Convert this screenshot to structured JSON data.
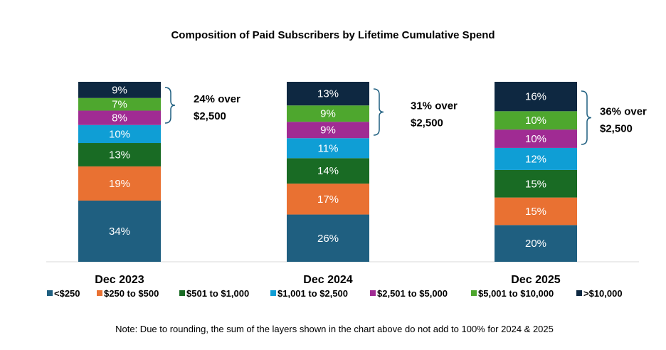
{
  "chart_data": {
    "type": "bar",
    "stacked": true,
    "title": "Composition of Paid Subscribers by Lifetime Cumulative Spend",
    "categories": [
      "Dec 2023",
      "Dec 2024",
      "Dec 2025"
    ],
    "unit": "%",
    "series": [
      {
        "name": "<$250",
        "color": "#1F5F80",
        "values": [
          34,
          26,
          20
        ]
      },
      {
        "name": "$250 to $500",
        "color": "#E97132",
        "values": [
          19,
          17,
          15
        ]
      },
      {
        "name": "$501 to $1,000",
        "color": "#196B24",
        "values": [
          13,
          14,
          15
        ]
      },
      {
        "name": "$1,001 to $2,500",
        "color": "#0F9ED5",
        "values": [
          10,
          11,
          12
        ]
      },
      {
        "name": "$2,501 to $5,000",
        "color": "#A02B93",
        "values": [
          8,
          9,
          10
        ]
      },
      {
        "name": "$5,001 to $10,000",
        "color": "#4EA72E",
        "values": [
          7,
          9,
          10
        ]
      },
      {
        "name": ">$10,000",
        "color": "#0E2841",
        "values": [
          9,
          13,
          16
        ]
      }
    ],
    "annotations": [
      {
        "line1": "24% over",
        "line2": "$2,500"
      },
      {
        "line1": "31% over",
        "line2": "$2,500"
      },
      {
        "line1": "36% over",
        "line2": "$2,500"
      }
    ],
    "legend": "bottom",
    "grid": false,
    "note": "Note:  Due to rounding, the sum of the layers shown in the chart above do not add to 100% for 2024 & 2025"
  }
}
